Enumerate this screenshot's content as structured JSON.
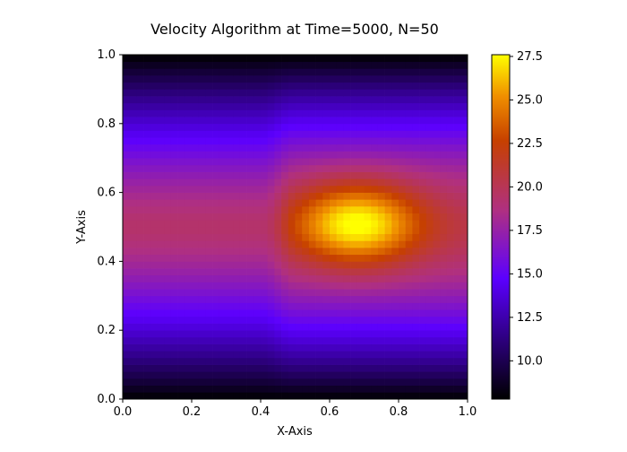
{
  "chart_data": {
    "type": "heatmap",
    "title": "Velocity Algorithm at Time=5000, N=50",
    "xlabel": "X-Axis",
    "ylabel": "Y-Axis",
    "xlim": [
      0.0,
      1.0
    ],
    "ylim": [
      0.0,
      1.0
    ],
    "x_ticks": [
      "0.0",
      "0.2",
      "0.4",
      "0.6",
      "0.8",
      "1.0"
    ],
    "y_ticks": [
      "0.0",
      "0.2",
      "0.4",
      "0.6",
      "0.8",
      "1.0"
    ],
    "grid_size": 50,
    "colormap": "gnuplot",
    "colorbar": {
      "min": 7.8,
      "max": 27.6,
      "ticks": [
        "10.0",
        "12.5",
        "15.0",
        "17.5",
        "20.0",
        "22.5",
        "25.0",
        "27.5"
      ]
    },
    "field_description": {
      "left_region_x": [
        0.0,
        0.48
      ],
      "left_region_peak": 19.5,
      "right_region_x": [
        0.48,
        1.0
      ],
      "right_region_peak": 27.6,
      "right_region_center": [
        0.68,
        0.51
      ],
      "boundary_value_top_bottom": 7.8
    },
    "grid": false
  }
}
